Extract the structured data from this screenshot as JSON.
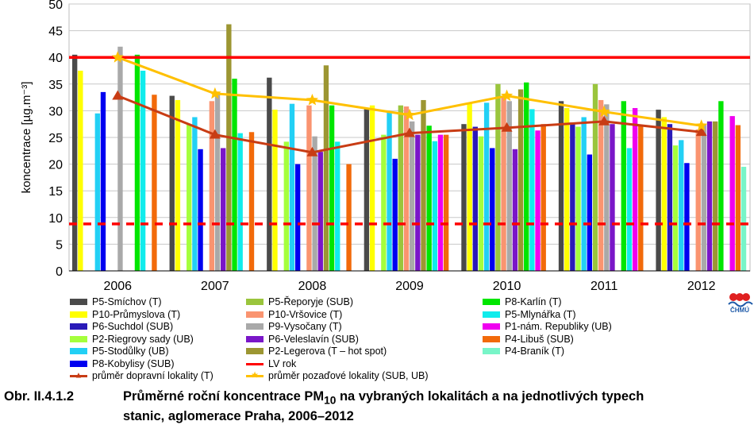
{
  "chart_data": {
    "type": "bar",
    "title": "",
    "xlabel": "",
    "ylabel": "koncentrace [µg.m⁻³]",
    "ylim": [
      0,
      50
    ],
    "yticks": [
      0,
      5,
      10,
      15,
      20,
      25,
      30,
      35,
      40,
      45,
      50
    ],
    "grid": "horizontal",
    "legend_position": "bottom",
    "categories": [
      "2006",
      "2007",
      "2008",
      "2009",
      "2010",
      "2011",
      "2012"
    ],
    "series": [
      {
        "name": "P5-Smíchov (T)",
        "color": "#4a4a4a",
        "values": [
          40.5,
          32.8,
          36.2,
          30.5,
          27.5,
          31.8,
          30.2
        ]
      },
      {
        "name": "P10-Průmyslova (T)",
        "color": "#ffff00",
        "values": [
          37.5,
          32.0,
          30.2,
          31.0,
          31.5,
          30.5,
          28.8
        ]
      },
      {
        "name": "P6-Suchdol (SUB)",
        "color": "#2a1ab8",
        "values": [
          null,
          null,
          null,
          null,
          27.0,
          27.8,
          27.5
        ]
      },
      {
        "name": "P2-Riegrovy sady (UB)",
        "color": "#a5ff3c",
        "values": [
          null,
          27.5,
          24.2,
          25.5,
          25.2,
          27.0,
          23.5
        ]
      },
      {
        "name": "P5-Stodůlky (UB)",
        "color": "#22d0f5",
        "values": [
          29.5,
          28.8,
          31.3,
          29.8,
          31.5,
          28.8,
          24.5
        ]
      },
      {
        "name": "P8-Kobylisy (SUB)",
        "color": "#0000f0",
        "values": [
          33.5,
          22.8,
          20.0,
          21.0,
          23.0,
          21.8,
          20.2
        ]
      },
      {
        "name": "P5-Řeporyje (SUB)",
        "color": "#9ac53c",
        "values": [
          null,
          null,
          null,
          31.0,
          35.0,
          35.0,
          null
        ]
      },
      {
        "name": "P10-Vršovice (T)",
        "color": "#fa9470",
        "values": [
          null,
          31.8,
          31.0,
          30.8,
          32.5,
          32.0,
          26.5
        ]
      },
      {
        "name": "P9-Vysočany (T)",
        "color": "#a9a9a9",
        "values": [
          42.0,
          33.5,
          25.2,
          28.0,
          31.8,
          31.2,
          27.5
        ]
      },
      {
        "name": "P6-Veleslavín (SUB)",
        "color": "#7a16c8",
        "values": [
          null,
          23.0,
          22.3,
          25.5,
          22.8,
          27.5,
          28.0
        ]
      },
      {
        "name": "P2-Legerova (T – hot spot)",
        "color": "#9c9632",
        "values": [
          null,
          46.2,
          38.5,
          32.0,
          34.0,
          null,
          28.0
        ]
      },
      {
        "name": "P8-Karlín (T)",
        "color": "#00e600",
        "values": [
          40.5,
          36.0,
          31.0,
          27.2,
          35.3,
          31.8,
          31.8
        ]
      },
      {
        "name": "P5-Mlynářka (T)",
        "color": "#10ecec",
        "values": [
          37.5,
          25.8,
          24.2,
          24.3,
          30.3,
          23.0,
          null
        ]
      },
      {
        "name": "P1-nám. Republiky (UB)",
        "color": "#f000f0",
        "values": [
          null,
          null,
          null,
          25.5,
          26.3,
          30.5,
          29.0
        ]
      },
      {
        "name": "P4-Libuš (SUB)",
        "color": "#f26a0a",
        "values": [
          33.0,
          26.0,
          20.0,
          25.5,
          27.5,
          27.3,
          27.3
        ]
      },
      {
        "name": "P4-Braník (T)",
        "color": "#78f5c8",
        "values": [
          null,
          null,
          null,
          null,
          null,
          null,
          19.5
        ]
      }
    ],
    "lines": [
      {
        "name": "LV rok",
        "color": "#ff0000",
        "value": 40,
        "style": "solid"
      },
      {
        "name": "",
        "color": "#ff0000",
        "value": 8.8,
        "style": "dashed"
      },
      {
        "name": "průměr dopravní lokality (T)",
        "color": "#c83c14",
        "marker": "▲",
        "values": [
          32.8,
          25.5,
          22.2,
          25.8,
          26.8,
          28.0,
          26.0
        ]
      },
      {
        "name": "průměr pozaďové lokality (SUB, UB)",
        "color": "#ffc000",
        "marker": "★",
        "values": [
          40.0,
          33.2,
          32.0,
          29.2,
          32.8,
          29.8,
          27.2
        ]
      }
    ]
  },
  "legend": {
    "columns": [
      [
        "P5-Smíchov (T)",
        "P10-Průmyslova (T)",
        "P6-Suchdol (SUB)",
        "P2-Riegrovy sady (UB)",
        "P5-Stodůlky (UB)",
        "P8-Kobylisy (SUB)"
      ],
      [
        "P5-Řeporyje (SUB)",
        "P10-Vršovice (T)",
        "P9-Vysočany (T)",
        "P6-Veleslavín (SUB)",
        "P2-Legerova (T – hot spot)"
      ],
      [
        "P8-Karlín (T)",
        "P5-Mlynářka (T)",
        "P1-nám. Republiky (UB)",
        "P4-Libuš (SUB)",
        "P4-Braník (T)"
      ]
    ]
  },
  "logo": {
    "text": "ČHMÚ"
  },
  "caption": {
    "lead": "Obr. II.4.1.2",
    "text_part1": "Průměrné roční koncentrace PM",
    "sub": "10",
    "text_part2": " na vybraných lokalitách a na jednotlivých typech",
    "line2": "stanic, aglomerace Praha, 2006–2012"
  }
}
